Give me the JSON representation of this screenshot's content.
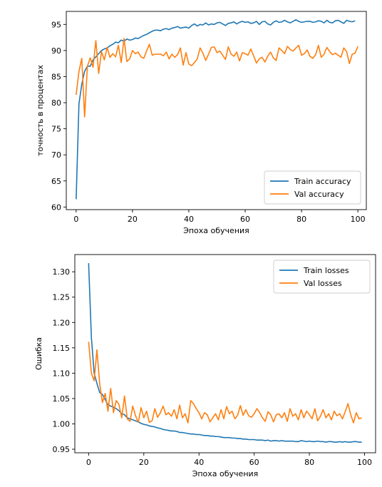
{
  "chart_data": [
    {
      "type": "line",
      "xlabel": "Эпоха обучения",
      "ylabel": "точность в процентах",
      "xlim": [
        -3.5,
        103
      ],
      "ylim": [
        59.5,
        97.5
      ],
      "xticks": [
        0,
        20,
        40,
        60,
        80,
        100
      ],
      "yticks": [
        60,
        65,
        70,
        75,
        80,
        85,
        90,
        95
      ],
      "legend_position": "lower-right",
      "grid": false,
      "series": [
        {
          "name": "Train accuracy",
          "color": "#1f77b4",
          "values": [
            61.5,
            79.8,
            83.5,
            86.0,
            87.0,
            87.0,
            88.2,
            88.8,
            89.4,
            90.0,
            90.3,
            90.5,
            90.9,
            91.2,
            91.6,
            91.5,
            92.0,
            91.8,
            92.2,
            92.0,
            92.1,
            92.4,
            92.3,
            92.6,
            92.9,
            93.1,
            93.4,
            93.7,
            93.9,
            93.9,
            93.8,
            94.1,
            94.2,
            94.0,
            94.3,
            94.4,
            94.6,
            94.3,
            94.4,
            94.5,
            94.3,
            94.8,
            95.1,
            94.7,
            95.0,
            94.9,
            95.3,
            94.9,
            95.1,
            95.0,
            95.3,
            95.4,
            95.1,
            94.8,
            95.2,
            95.3,
            95.5,
            95.1,
            95.4,
            95.6,
            95.4,
            95.5,
            95.2,
            95.3,
            95.6,
            95.0,
            95.5,
            95.6,
            95.1,
            94.9,
            95.4,
            95.7,
            95.4,
            95.5,
            95.8,
            95.5,
            95.3,
            95.6,
            95.9,
            95.6,
            95.4,
            95.5,
            95.6,
            95.6,
            95.4,
            95.5,
            95.7,
            95.6,
            95.3,
            95.8,
            95.4,
            95.3,
            95.7,
            95.8,
            95.5,
            95.2,
            95.8,
            95.6,
            95.5,
            95.7
          ]
        },
        {
          "name": "Val accuracy",
          "color": "#ff7f0e",
          "values": [
            81.5,
            86.0,
            88.5,
            77.3,
            87.0,
            88.6,
            86.8,
            91.9,
            85.6,
            89.8,
            88.2,
            90.6,
            88.7,
            89.4,
            88.8,
            91.0,
            87.7,
            92.3,
            87.9,
            88.4,
            90.0,
            89.4,
            89.7,
            88.8,
            88.5,
            89.9,
            91.2,
            89.1,
            89.3,
            89.3,
            89.3,
            89.0,
            89.7,
            88.4,
            89.3,
            88.7,
            89.2,
            90.5,
            87.2,
            89.6,
            87.4,
            87.1,
            87.7,
            88.4,
            90.5,
            89.5,
            88.1,
            89.3,
            90.6,
            90.7,
            89.6,
            89.9,
            89.1,
            88.3,
            90.7,
            89.3,
            88.9,
            89.7,
            88.0,
            89.6,
            89.4,
            89.1,
            90.3,
            89.0,
            87.6,
            88.4,
            88.7,
            87.8,
            88.9,
            89.7,
            88.6,
            88.1,
            90.5,
            90.0,
            89.4,
            90.8,
            90.2,
            89.9,
            90.5,
            91.0,
            89.1,
            89.4,
            90.1,
            88.9,
            88.5,
            89.2,
            91.0,
            88.7,
            89.3,
            90.6,
            89.8,
            89.2,
            89.5,
            89.1,
            88.7,
            90.5,
            89.8,
            87.5,
            89.3,
            89.5,
            90.8
          ]
        }
      ]
    },
    {
      "type": "line",
      "xlabel": "Эпоха обучения",
      "ylabel": "Ошибка",
      "xlim": [
        -5,
        104
      ],
      "ylim": [
        0.943,
        1.334
      ],
      "xticks": [
        0,
        20,
        40,
        60,
        80,
        100
      ],
      "yticks": [
        0.95,
        1.0,
        1.05,
        1.1,
        1.15,
        1.2,
        1.25,
        1.3
      ],
      "legend_position": "upper-right",
      "grid": false,
      "series": [
        {
          "name": "Train losses",
          "color": "#1f77b4",
          "values": [
            1.317,
            1.17,
            1.1,
            1.08,
            1.062,
            1.058,
            1.048,
            1.038,
            1.035,
            1.033,
            1.03,
            1.026,
            1.02,
            1.018,
            1.012,
            1.01,
            1.008,
            1.006,
            1.004,
            1.001,
            0.999,
            0.998,
            0.996,
            0.995,
            0.994,
            0.992,
            0.991,
            0.989,
            0.988,
            0.987,
            0.986,
            0.986,
            0.985,
            0.983,
            0.983,
            0.982,
            0.981,
            0.98,
            0.98,
            0.979,
            0.979,
            0.978,
            0.977,
            0.977,
            0.976,
            0.976,
            0.975,
            0.975,
            0.974,
            0.973,
            0.973,
            0.973,
            0.972,
            0.972,
            0.971,
            0.971,
            0.97,
            0.97,
            0.969,
            0.969,
            0.969,
            0.968,
            0.968,
            0.968,
            0.967,
            0.968,
            0.966,
            0.967,
            0.967,
            0.966,
            0.967,
            0.966,
            0.966,
            0.966,
            0.966,
            0.965,
            0.965,
            0.967,
            0.966,
            0.965,
            0.966,
            0.965,
            0.965,
            0.966,
            0.965,
            0.965,
            0.964,
            0.965,
            0.965,
            0.964,
            0.964,
            0.965,
            0.964,
            0.965,
            0.964,
            0.964,
            0.965,
            0.965,
            0.964,
            0.964
          ]
        },
        {
          "name": "Val losses",
          "color": "#ff7f0e",
          "values": [
            1.162,
            1.1,
            1.085,
            1.146,
            1.08,
            1.042,
            1.06,
            1.025,
            1.07,
            1.022,
            1.046,
            1.038,
            1.012,
            1.055,
            1.01,
            1.005,
            1.035,
            1.016,
            1.003,
            1.032,
            1.012,
            1.025,
            1.003,
            1.006,
            1.03,
            1.013,
            1.022,
            1.035,
            1.018,
            1.022,
            1.015,
            1.028,
            1.01,
            1.037,
            1.012,
            1.02,
            1.002,
            1.046,
            1.04,
            1.03,
            1.022,
            1.01,
            1.022,
            1.018,
            1.004,
            1.012,
            1.02,
            1.008,
            1.028,
            1.01,
            1.034,
            1.02,
            1.025,
            1.01,
            1.017,
            1.036,
            1.017,
            1.028,
            1.016,
            1.013,
            1.02,
            1.03,
            1.022,
            1.012,
            1.005,
            1.024,
            1.018,
            1.004,
            1.018,
            1.02,
            1.012,
            1.022,
            1.005,
            1.03,
            1.015,
            1.02,
            1.008,
            1.028,
            1.012,
            1.025,
            1.018,
            1.01,
            1.03,
            1.006,
            1.015,
            1.028,
            1.012,
            1.02,
            1.008,
            1.025,
            1.016,
            1.02,
            1.01,
            1.024,
            1.04,
            1.018,
            1.002,
            1.022,
            1.01,
            1.012
          ]
        }
      ]
    }
  ]
}
